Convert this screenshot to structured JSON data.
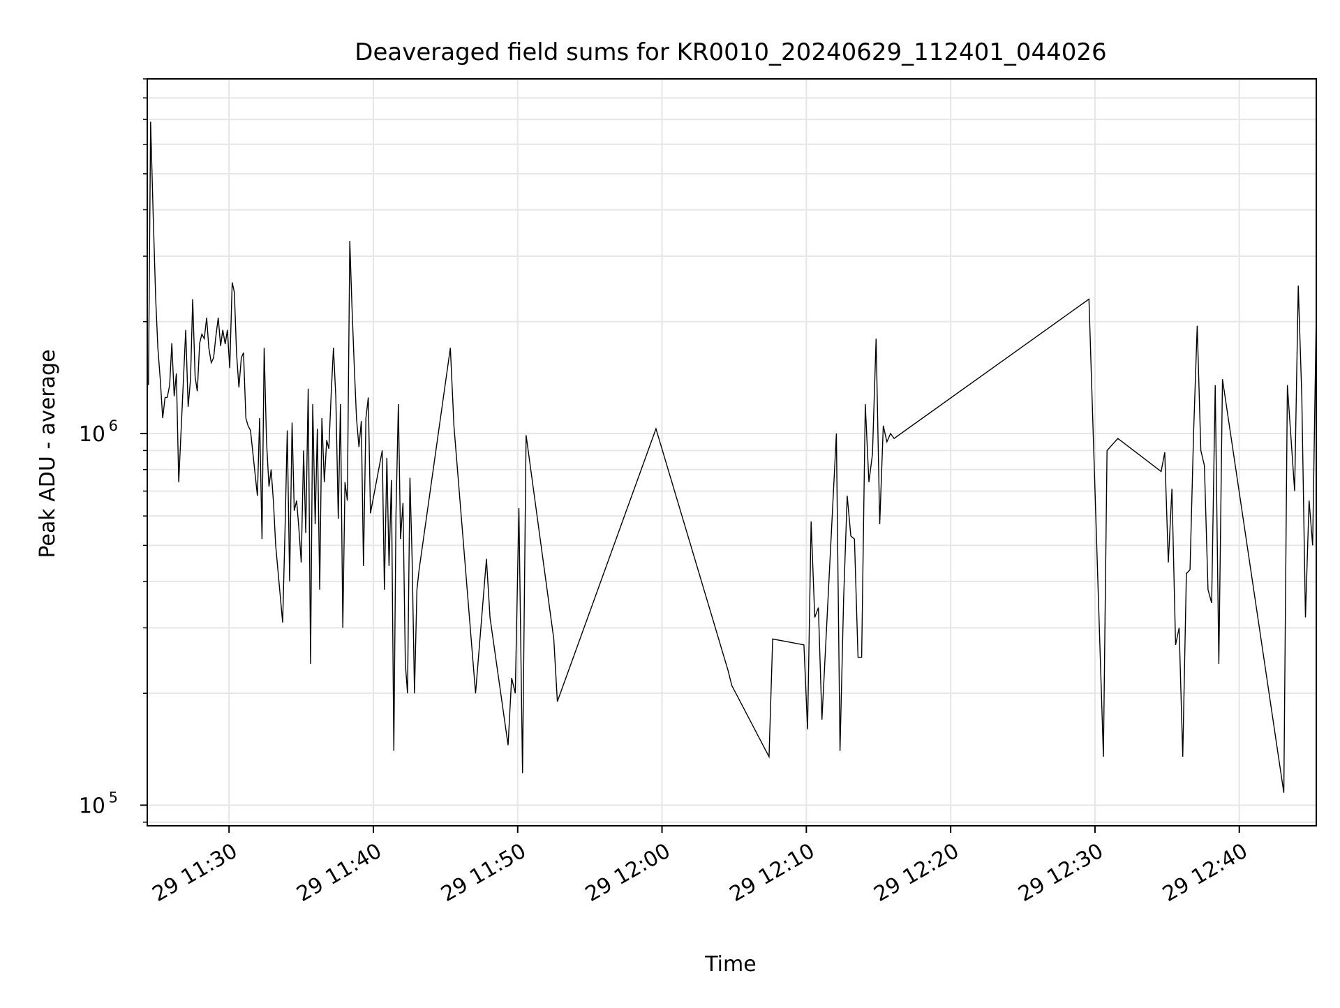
{
  "chart_data": {
    "type": "line",
    "title": "Deaveraged field sums for KR0010_20240629_112401_044026",
    "xlabel": "Time",
    "ylabel": "Peak ADU - average",
    "x_axis": "time (HH:MM on day 29)",
    "xlim": [
      "11:24:20",
      "12:45:20"
    ],
    "ylim": [
      88000,
      9000000
    ],
    "yscale": "log",
    "grid": true,
    "line_color": "#000000",
    "grid_color": "#e6e6e6",
    "x_ticks": [
      {
        "t": "11:30",
        "label": "29 11:30"
      },
      {
        "t": "11:40",
        "label": "29 11:40"
      },
      {
        "t": "11:50",
        "label": "29 11:50"
      },
      {
        "t": "12:00",
        "label": "29 12:00"
      },
      {
        "t": "12:10",
        "label": "29 12:10"
      },
      {
        "t": "12:20",
        "label": "29 12:20"
      },
      {
        "t": "12:30",
        "label": "29 12:30"
      },
      {
        "t": "12:40",
        "label": "29 12:40"
      }
    ],
    "y_ticks": [
      {
        "v": 100000,
        "base": "10",
        "exp": "5"
      },
      {
        "v": 1000000,
        "base": "10",
        "exp": "6"
      }
    ],
    "series": [
      {
        "x": [
          "11:24:25",
          "11:24:34",
          "11:24:45",
          "11:24:55",
          "11:25:04",
          "11:25:14",
          "11:25:24",
          "11:25:34",
          "11:25:43",
          "11:25:53",
          "11:26:02",
          "11:26:12",
          "11:26:21",
          "11:26:31",
          "11:27:00",
          "11:27:10",
          "11:27:20",
          "11:27:29",
          "11:27:39",
          "11:27:48",
          "11:27:58",
          "11:28:07",
          "11:28:17",
          "11:28:27",
          "11:28:36",
          "11:28:46",
          "11:28:56",
          "11:29:05",
          "11:29:15",
          "11:29:25",
          "11:29:34",
          "11:29:44",
          "11:29:53",
          "11:30:03",
          "11:30:13",
          "11:30:22",
          "11:30:31",
          "11:30:41",
          "11:30:51",
          "11:31:00",
          "11:31:10",
          "11:31:19",
          "11:31:29",
          "11:31:58",
          "11:32:07",
          "11:32:17",
          "11:32:26",
          "11:32:36",
          "11:32:46",
          "11:32:55",
          "11:33:05",
          "11:33:14",
          "11:33:43",
          "11:33:53",
          "11:34:02",
          "11:34:12",
          "11:34:22",
          "11:34:31",
          "11:34:41",
          "11:34:50",
          "11:35:00",
          "11:35:10",
          "11:35:19",
          "11:35:29",
          "11:35:39",
          "11:35:48",
          "11:35:58",
          "11:36:07",
          "11:36:17",
          "11:36:26",
          "11:36:36",
          "11:36:46",
          "11:36:55",
          "11:37:05",
          "11:37:14",
          "11:37:24",
          "11:37:34",
          "11:37:43",
          "11:37:53",
          "11:38:02",
          "11:38:12",
          "11:38:22",
          "11:38:31",
          "11:38:41",
          "11:38:50",
          "11:39:00",
          "11:39:10",
          "11:39:19",
          "11:39:29",
          "11:39:39",
          "11:39:48",
          "11:40:37",
          "11:40:46",
          "11:40:56",
          "11:41:05",
          "11:41:15",
          "11:41:25",
          "11:41:34",
          "11:41:44",
          "11:41:53",
          "11:42:03",
          "11:42:13",
          "11:42:22",
          "11:42:32",
          "11:42:41",
          "11:42:51",
          "11:43:01",
          "11:43:10",
          "11:45:20",
          "11:45:35",
          "11:47:05",
          "11:47:50",
          "11:48:05",
          "11:49:20",
          "11:49:35",
          "11:49:50",
          "11:50:05",
          "11:50:20",
          "11:50:35",
          "11:52:30",
          "11:52:45",
          "11:59:35",
          "12:04:35",
          "12:04:50",
          "12:07:25",
          "12:07:40",
          "12:09:50",
          "12:10:05",
          "12:10:20",
          "12:10:35",
          "12:10:50",
          "12:11:05",
          "12:12:05",
          "12:12:20",
          "12:12:35",
          "12:12:50",
          "12:13:05",
          "12:13:20",
          "12:13:35",
          "12:13:50",
          "12:14:05",
          "12:14:20",
          "12:14:35",
          "12:14:50",
          "12:15:05",
          "12:15:20",
          "12:15:35",
          "12:15:50",
          "12:16:05",
          "12:29:35",
          "12:30:35",
          "12:30:50",
          "12:31:35",
          "12:34:35",
          "12:34:50",
          "12:35:05",
          "12:35:20",
          "12:35:35",
          "12:35:50",
          "12:36:05",
          "12:36:20",
          "12:36:35",
          "12:36:50",
          "12:37:05",
          "12:37:20",
          "12:37:35",
          "12:37:50",
          "12:38:05",
          "12:38:20",
          "12:38:35",
          "12:38:50",
          "12:43:05",
          "12:43:20",
          "12:43:50",
          "12:44:05",
          "12:44:20",
          "12:44:35",
          "12:44:50",
          "12:45:05",
          "12:45:20"
        ],
        "y": [
          1350000,
          6900000,
          3800000,
          2300000,
          1700000,
          1400000,
          1100000,
          1250000,
          1250000,
          1350000,
          1750000,
          1260000,
          1450000,
          740000,
          1900000,
          1180000,
          1400000,
          2300000,
          1420000,
          1300000,
          1750000,
          1850000,
          1800000,
          2050000,
          1700000,
          1550000,
          1600000,
          1820000,
          2050000,
          1720000,
          1900000,
          1740000,
          1900000,
          1500000,
          2550000,
          2400000,
          1650000,
          1330000,
          1600000,
          1650000,
          1100000,
          1050000,
          1020000,
          680000,
          1100000,
          520000,
          1700000,
          950000,
          720000,
          800000,
          650000,
          500000,
          310000,
          560000,
          1020000,
          400000,
          1070000,
          620000,
          660000,
          560000,
          450000,
          900000,
          540000,
          1320000,
          240000,
          1200000,
          570000,
          1030000,
          380000,
          1100000,
          740000,
          960000,
          910000,
          1300000,
          1700000,
          1250000,
          590000,
          1200000,
          300000,
          740000,
          660000,
          3300000,
          2200000,
          1500000,
          1100000,
          920000,
          1080000,
          440000,
          1100000,
          1250000,
          610000,
          900000,
          380000,
          860000,
          440000,
          750000,
          140000,
          610000,
          1200000,
          520000,
          650000,
          240000,
          200000,
          760000,
          460000,
          200000,
          380000,
          430000,
          1700000,
          1050000,
          200000,
          460000,
          320000,
          145000,
          220000,
          200000,
          630000,
          122000,
          990000,
          280000,
          190000,
          1030000,
          230000,
          210000,
          135000,
          280000,
          270000,
          160000,
          580000,
          320000,
          340000,
          170000,
          1000000,
          140000,
          360000,
          680000,
          530000,
          520000,
          250000,
          250000,
          1200000,
          740000,
          880000,
          1800000,
          570000,
          1050000,
          950000,
          1000000,
          970000,
          2300000,
          135000,
          900000,
          970000,
          790000,
          890000,
          450000,
          710000,
          270000,
          300000,
          135000,
          420000,
          430000,
          1000000,
          1950000,
          900000,
          820000,
          380000,
          350000,
          1350000,
          240000,
          1400000,
          108000,
          1350000,
          700000,
          2500000,
          1250000,
          320000,
          660000,
          500000,
          2100000
        ]
      }
    ]
  }
}
